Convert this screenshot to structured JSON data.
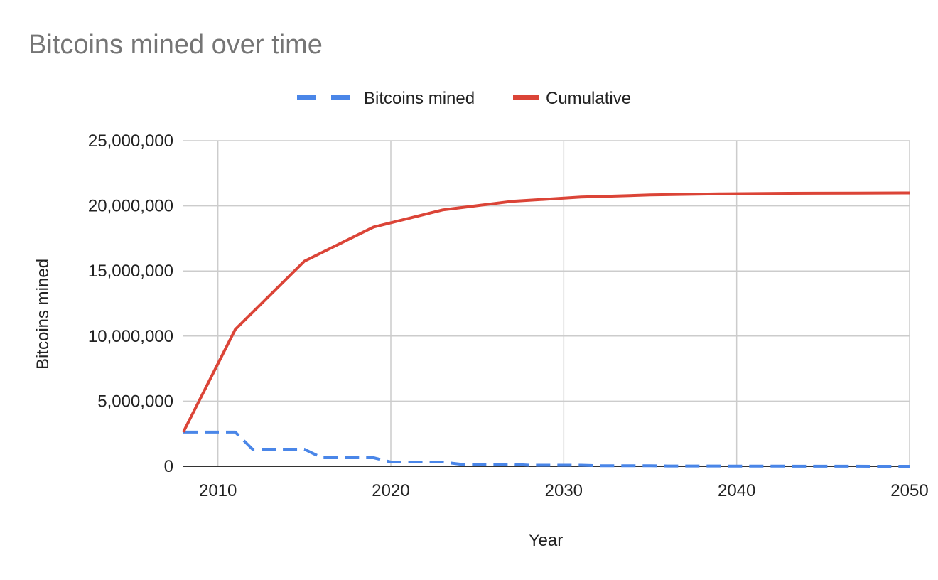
{
  "chart_data": {
    "type": "line",
    "title": "Bitcoins mined over time",
    "xlabel": "Year",
    "ylabel": "Bitcoins mined",
    "xlim": [
      2008,
      2050
    ],
    "ylim": [
      0,
      25000000
    ],
    "xticks": [
      2010,
      2020,
      2030,
      2040,
      2050
    ],
    "xtick_labels": [
      "2010",
      "2020",
      "2030",
      "2040",
      "2050"
    ],
    "yticks": [
      0,
      5000000,
      10000000,
      15000000,
      20000000,
      25000000
    ],
    "ytick_labels": [
      "0",
      "5,000,000",
      "10,000,000",
      "15,000,000",
      "20,000,000",
      "25,000,000"
    ],
    "grid": true,
    "legend_position": "top-center",
    "series": [
      {
        "name": "Bitcoins mined",
        "color": "#4a86e8",
        "style": "dashed",
        "points": [
          [
            2008,
            2625000
          ],
          [
            2011,
            2625000
          ],
          [
            2012,
            1312500
          ],
          [
            2015,
            1312500
          ],
          [
            2016,
            656250
          ],
          [
            2019,
            656250
          ],
          [
            2020,
            328125
          ],
          [
            2023,
            328125
          ],
          [
            2024,
            164062
          ],
          [
            2027,
            164062
          ],
          [
            2028,
            82031
          ],
          [
            2031,
            82031
          ],
          [
            2032,
            41016
          ],
          [
            2035,
            41016
          ],
          [
            2036,
            20508
          ],
          [
            2039,
            20508
          ],
          [
            2040,
            10254
          ],
          [
            2043,
            10254
          ],
          [
            2044,
            5127
          ],
          [
            2047,
            5127
          ],
          [
            2048,
            2563
          ],
          [
            2050,
            2563
          ]
        ]
      },
      {
        "name": "Cumulative",
        "color": "#db4437",
        "style": "solid",
        "points": [
          [
            2008,
            2625000
          ],
          [
            2011,
            10500000
          ],
          [
            2015,
            15750000
          ],
          [
            2019,
            18375000
          ],
          [
            2023,
            19687500
          ],
          [
            2027,
            20343750
          ],
          [
            2031,
            20671875
          ],
          [
            2035,
            20835937
          ],
          [
            2039,
            20917968
          ],
          [
            2043,
            20958984
          ],
          [
            2047,
            20979492
          ],
          [
            2050,
            20987180
          ]
        ]
      }
    ]
  }
}
